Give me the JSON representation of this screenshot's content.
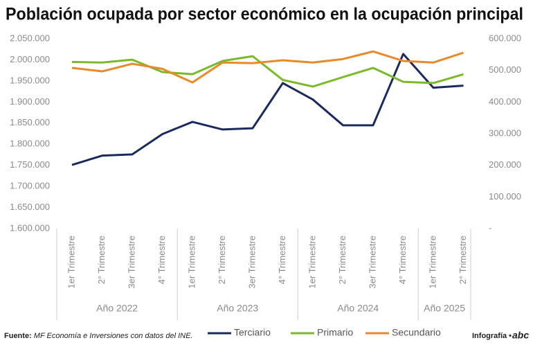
{
  "chart_data": {
    "type": "line",
    "title": "Población ocupada por sector económico en la ocupación principal",
    "groups": [
      {
        "label": "Año 2022",
        "categories": [
          "1er Trimestre",
          "2° Trimestre",
          "3er Trimestre",
          "4° Trimestre"
        ]
      },
      {
        "label": "Año 2023",
        "categories": [
          "1er Trimestre",
          "2° Trimestre",
          "3er Trimestre",
          "4° Trimestre"
        ]
      },
      {
        "label": "Año 2024",
        "categories": [
          "1er Trimestre",
          "2° Trimestre",
          "3er Trimestre",
          "4° Trimestre"
        ]
      },
      {
        "label": "Año 2025",
        "categories": [
          "1er Trimestre",
          "2° Trimestre"
        ]
      }
    ],
    "series": [
      {
        "name": "Terciario",
        "color": "#1b2a5e",
        "axis": "y",
        "values": [
          1751000,
          1773000,
          1776000,
          1824000,
          1853000,
          1835000,
          1838000,
          1945000,
          1906000,
          1845000,
          1845000,
          2014000,
          1934000,
          1939000
        ]
      },
      {
        "name": "Primario",
        "color": "#7ab929",
        "axis": "y2",
        "values": [
          527000,
          525000,
          534000,
          495000,
          488000,
          530000,
          545000,
          470000,
          449000,
          479000,
          508000,
          464000,
          460000,
          488000
        ]
      },
      {
        "name": "Secundario",
        "color": "#e8892a",
        "axis": "y2",
        "values": [
          508000,
          497000,
          521000,
          505000,
          462000,
          525000,
          523000,
          532000,
          525000,
          536000,
          560000,
          530000,
          525000,
          556000
        ]
      }
    ],
    "ylim": [
      1600000,
      2050000
    ],
    "yticks": [
      {
        "value": 1600000,
        "label": "1.600.000"
      },
      {
        "value": 1650000,
        "label": "1.650.000"
      },
      {
        "value": 1700000,
        "label": "1.700.000"
      },
      {
        "value": 1750000,
        "label": "1.750.000"
      },
      {
        "value": 1800000,
        "label": "1.800.000"
      },
      {
        "value": 1850000,
        "label": "1.850.000"
      },
      {
        "value": 1900000,
        "label": "1.900.000"
      },
      {
        "value": 1950000,
        "label": "1.950.000"
      },
      {
        "value": 2000000,
        "label": "2.000.000"
      },
      {
        "value": 2050000,
        "label": "2.050.000"
      }
    ],
    "y2lim": [
      0,
      600000
    ],
    "y2ticks": [
      {
        "value": 0,
        "label": "-"
      },
      {
        "value": 100000,
        "label": "100.000"
      },
      {
        "value": 200000,
        "label": "200.000"
      },
      {
        "value": 300000,
        "label": "300.000"
      },
      {
        "value": 400000,
        "label": "400.000"
      },
      {
        "value": 500000,
        "label": "500.000"
      },
      {
        "value": 600000,
        "label": "600.000"
      }
    ]
  },
  "footer": {
    "source_label": "Fuente:",
    "source": "MF Economía e Inversiones con datos del INE.",
    "credit": "Infografía •",
    "logo": "abc"
  }
}
